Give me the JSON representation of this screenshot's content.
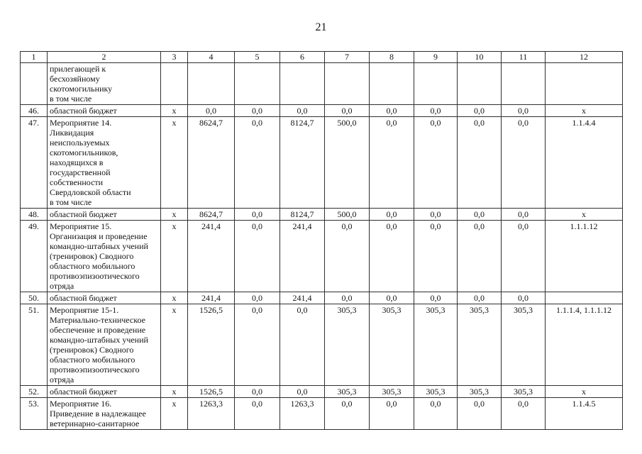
{
  "page": {
    "number": "21"
  },
  "table": {
    "columns": [
      "1",
      "2",
      "3",
      "4",
      "5",
      "6",
      "7",
      "8",
      "9",
      "10",
      "11",
      "12"
    ],
    "rows": [
      {
        "num": "",
        "name": "прилегающей к\nбесхозяйному\nскотомогильнику\nв том числе",
        "cells": [
          "",
          "",
          "",
          "",
          "",
          "",
          "",
          "",
          "",
          ""
        ]
      },
      {
        "num": "46.",
        "name": "областной бюджет",
        "cells": [
          "x",
          "0,0",
          "0,0",
          "0,0",
          "0,0",
          "0,0",
          "0,0",
          "0,0",
          "0,0",
          "x"
        ]
      },
      {
        "num": "47.",
        "name": "Мероприятие 14.\nЛиквидация\nнеиспользуемых\nскотомогильников,\nнаходящихся в\nгосударственной\nсобственности\nСвердловской области\nв том числе",
        "cells": [
          "x",
          "8624,7",
          "0,0",
          "8124,7",
          "500,0",
          "0,0",
          "0,0",
          "0,0",
          "0,0",
          "1.1.4.4"
        ]
      },
      {
        "num": "48.",
        "name": "областной бюджет",
        "cells": [
          "x",
          "8624,7",
          "0,0",
          "8124,7",
          "500,0",
          "0,0",
          "0,0",
          "0,0",
          "0,0",
          "x"
        ]
      },
      {
        "num": "49.",
        "name": "Мероприятие 15.\nОрганизация и проведение\nкомандно-штабных учений\n(тренировок) Сводного\nобластного мобильного\nпротивоэпизоотического\nотряда",
        "cells": [
          "x",
          "241,4",
          "0,0",
          "241,4",
          "0,0",
          "0,0",
          "0,0",
          "0,0",
          "0,0",
          "1.1.1.12"
        ]
      },
      {
        "num": "50.",
        "name": "областной бюджет",
        "cells": [
          "x",
          "241,4",
          "0,0",
          "241,4",
          "0,0",
          "0,0",
          "0,0",
          "0,0",
          "0,0",
          ""
        ]
      },
      {
        "num": "51.",
        "name": "Мероприятие 15-1.\nМатериально-техническое\nобеспечение и проведение\nкомандно-штабных учений\n(тренировок) Сводного\nобластного мобильного\nпротивоэпизоотического\nотряда",
        "cells": [
          "x",
          "1526,5",
          "0,0",
          "0,0",
          "305,3",
          "305,3",
          "305,3",
          "305,3",
          "305,3",
          "1.1.1.4, 1.1.1.12"
        ]
      },
      {
        "num": "52.",
        "name": "областной бюджет",
        "cells": [
          "x",
          "1526,5",
          "0,0",
          "0,0",
          "305,3",
          "305,3",
          "305,3",
          "305,3",
          "305,3",
          "x"
        ]
      },
      {
        "num": "53.",
        "name": "Мероприятие 16.\nПриведение в надлежащее\nветеринарно-санитарное",
        "cells": [
          "x",
          "1263,3",
          "0,0",
          "1263,3",
          "0,0",
          "0,0",
          "0,0",
          "0,0",
          "0,0",
          "1.1.4.5"
        ]
      }
    ]
  }
}
